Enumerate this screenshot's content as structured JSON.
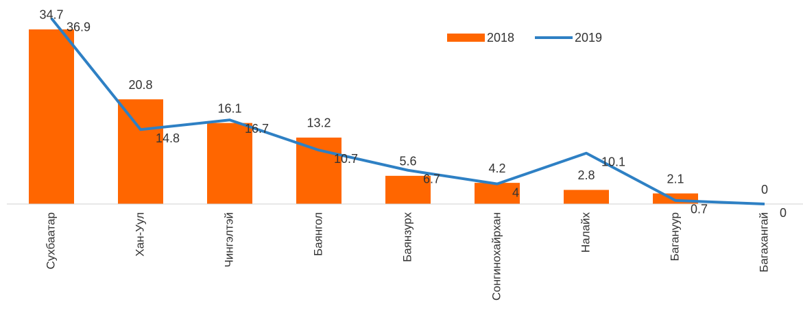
{
  "chart_data": {
    "type": "bar",
    "categories": [
      "Сухбаатар",
      "Хан-Уул",
      "Чингэлтэй",
      "Баянгол",
      "Баянзурх",
      "Сонгинохайрхан",
      "Налайх",
      "Багануур",
      "Багахангай"
    ],
    "series": [
      {
        "name": "2018",
        "type": "bar",
        "color": "#ff6600",
        "values": [
          34.7,
          20.8,
          16.1,
          13.2,
          5.6,
          4.2,
          2.8,
          2.1,
          0
        ]
      },
      {
        "name": "2019",
        "type": "line",
        "color": "#2e80c4",
        "values": [
          36.9,
          14.8,
          16.7,
          10.7,
          6.7,
          4,
          10.1,
          0.7,
          0
        ]
      }
    ],
    "ylim": [
      0,
      40
    ],
    "legend": "top-right"
  }
}
